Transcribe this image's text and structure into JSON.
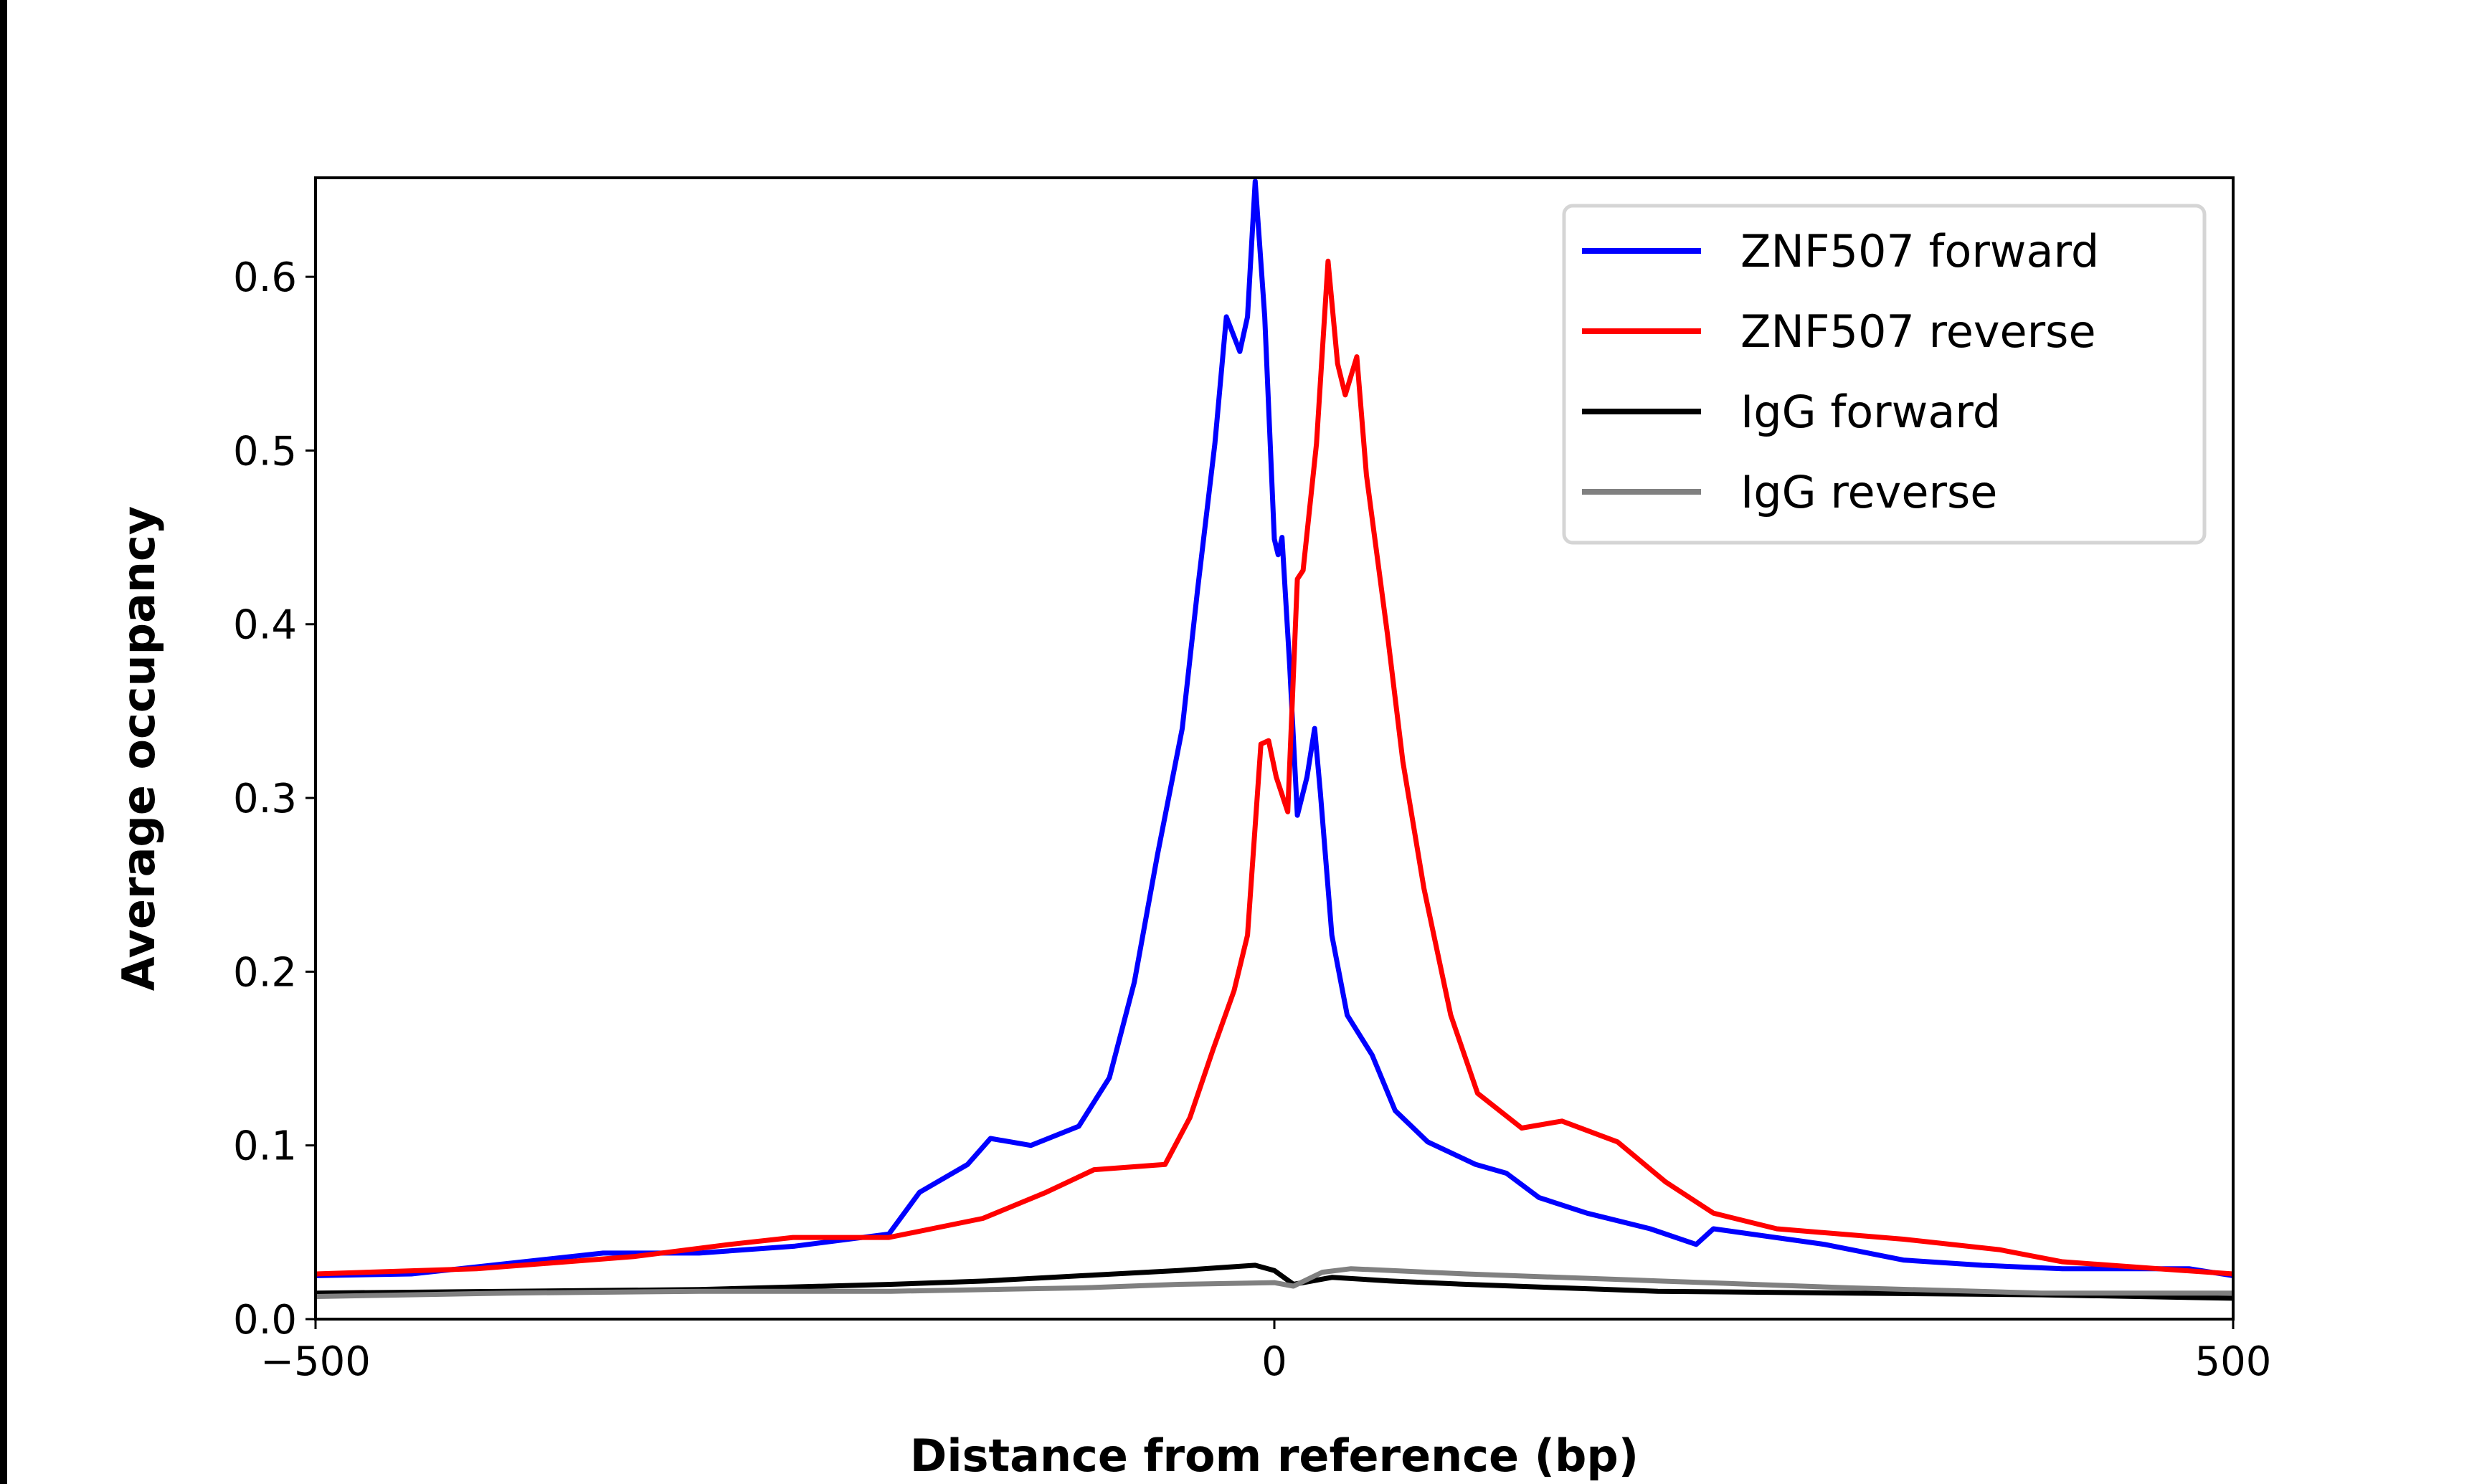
{
  "chart_data": {
    "type": "line",
    "xlabel": "Distance from reference (bp)",
    "ylabel": "Average occupancy",
    "xlim": [
      -500,
      500
    ],
    "ylim": [
      0,
      0.657
    ],
    "xticks": [
      "−500",
      "0",
      "500"
    ],
    "xtick_values": [
      -500,
      0,
      500
    ],
    "yticks": [
      "0.0",
      "0.1",
      "0.2",
      "0.3",
      "0.4",
      "0.5",
      "0.6"
    ],
    "ytick_values": [
      0,
      0.1,
      0.2,
      0.3,
      0.4,
      0.5,
      0.6
    ],
    "grid": false,
    "legend_position": "top-right",
    "series": [
      {
        "name": "ZNF507 forward",
        "color": "#0000ff",
        "x": [
          -500,
          -450,
          -400,
          -350,
          -300,
          -250,
          -201,
          -185,
          -160,
          -148,
          -127,
          -102,
          -86,
          -73,
          -61,
          -48,
          -40,
          -31,
          -25,
          -18,
          -14,
          -10,
          -5,
          0,
          2,
          4,
          8,
          12,
          17,
          21,
          24,
          30,
          38,
          51,
          63,
          80,
          105,
          121,
          138,
          163,
          196,
          220,
          229,
          287,
          328,
          369,
          411,
          477,
          500
        ],
        "y": [
          0.025,
          0.026,
          0.032,
          0.038,
          0.038,
          0.042,
          0.049,
          0.073,
          0.089,
          0.104,
          0.1,
          0.111,
          0.139,
          0.194,
          0.267,
          0.34,
          0.42,
          0.504,
          0.577,
          0.557,
          0.577,
          0.655,
          0.577,
          0.449,
          0.44,
          0.45,
          0.376,
          0.29,
          0.312,
          0.34,
          0.303,
          0.221,
          0.175,
          0.152,
          0.12,
          0.102,
          0.089,
          0.084,
          0.07,
          0.061,
          0.052,
          0.043,
          0.052,
          0.043,
          0.034,
          0.031,
          0.029,
          0.029,
          0.025
        ]
      },
      {
        "name": "ZNF507 reverse",
        "color": "#ff0000",
        "x": [
          -500,
          -416,
          -334,
          -284,
          -251,
          -201,
          -152,
          -119,
          -94,
          -57,
          -44,
          -32,
          -21,
          -14,
          -7,
          -3,
          1,
          7,
          12,
          15,
          22,
          28,
          33,
          37,
          43,
          48,
          59,
          67,
          78,
          92,
          106,
          129,
          150,
          179,
          204,
          229,
          262,
          295,
          328,
          378,
          411,
          461,
          500
        ],
        "y": [
          0.026,
          0.029,
          0.036,
          0.043,
          0.047,
          0.047,
          0.058,
          0.073,
          0.086,
          0.089,
          0.116,
          0.155,
          0.189,
          0.221,
          0.331,
          0.333,
          0.312,
          0.292,
          0.426,
          0.431,
          0.504,
          0.609,
          0.55,
          0.532,
          0.554,
          0.486,
          0.394,
          0.321,
          0.248,
          0.175,
          0.13,
          0.11,
          0.114,
          0.102,
          0.079,
          0.061,
          0.052,
          0.049,
          0.046,
          0.04,
          0.033,
          0.029,
          0.026
        ]
      },
      {
        "name": "IgG forward",
        "color": "#000000",
        "x": [
          -500,
          -400,
          -300,
          -200,
          -150,
          -100,
          -50,
          -10,
          0,
          10,
          30,
          60,
          100,
          150,
          200,
          300,
          400,
          500
        ],
        "y": [
          0.015,
          0.016,
          0.017,
          0.02,
          0.022,
          0.025,
          0.028,
          0.031,
          0.028,
          0.02,
          0.024,
          0.022,
          0.02,
          0.018,
          0.016,
          0.015,
          0.014,
          0.012
        ]
      },
      {
        "name": "IgG reverse",
        "color": "#808080",
        "x": [
          -500,
          -400,
          -300,
          -200,
          -100,
          -50,
          0,
          10,
          25,
          40,
          100,
          200,
          300,
          400,
          500
        ],
        "y": [
          0.013,
          0.015,
          0.016,
          0.016,
          0.018,
          0.02,
          0.021,
          0.019,
          0.027,
          0.029,
          0.026,
          0.022,
          0.018,
          0.015,
          0.015
        ]
      }
    ]
  }
}
